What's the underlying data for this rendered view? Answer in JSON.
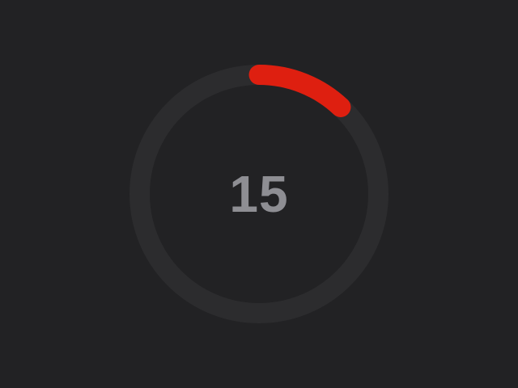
{
  "timer": {
    "value": "15",
    "progress": 0.12,
    "track_color": "#2c2c2e",
    "progress_color": "#de1f10",
    "text_color": "#8e8e93"
  }
}
